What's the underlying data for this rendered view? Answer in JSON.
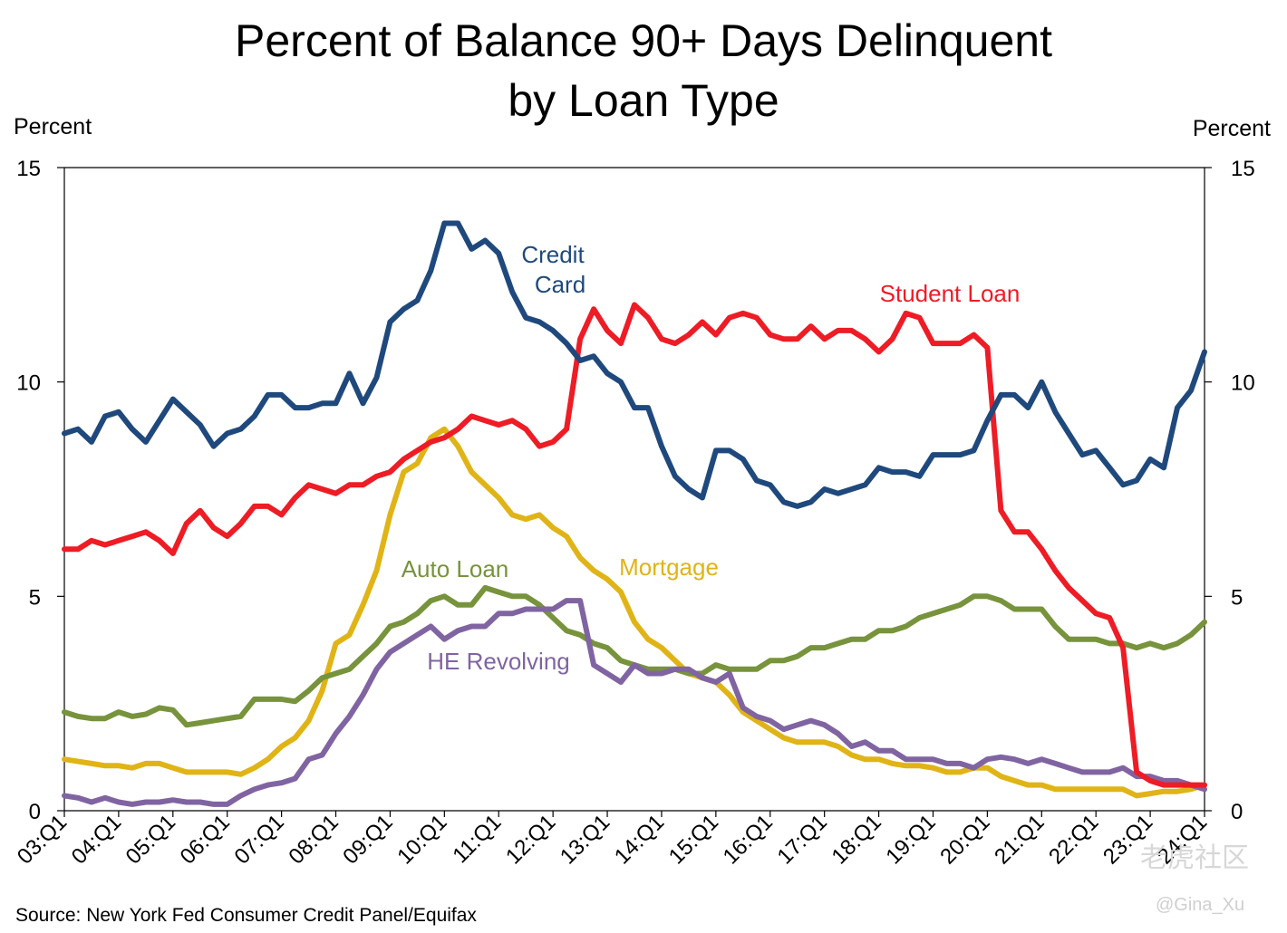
{
  "chart_data": {
    "type": "line",
    "title_line1": "Percent of Balance 90+ Days Delinquent",
    "title_line2": "by Loan Type",
    "ylabel_left": "Percent",
    "ylabel_right": "Percent",
    "ylim": [
      0,
      15
    ],
    "yticks": [
      0,
      5,
      10,
      15
    ],
    "x_start": "2003-Q1",
    "x_end": "2024-Q1",
    "x_ticks": [
      "03:Q1",
      "04:Q1",
      "05:Q1",
      "06:Q1",
      "07:Q1",
      "08:Q1",
      "09:Q1",
      "10:Q1",
      "11:Q1",
      "12:Q1",
      "13:Q1",
      "14:Q1",
      "15:Q1",
      "16:Q1",
      "17:Q1",
      "18:Q1",
      "19:Q1",
      "20:Q1",
      "21:Q1",
      "22:Q1",
      "23:Q1",
      "24:Q1"
    ],
    "source": "Source: New York Fed Consumer Credit Panel/Equifax",
    "series": [
      {
        "name": "Credit Card",
        "label_lines": [
          "Credit",
          "Card"
        ],
        "color": "#1f497d",
        "values": [
          8.8,
          8.9,
          8.6,
          9.2,
          9.3,
          8.9,
          8.6,
          9.1,
          9.6,
          9.3,
          9.0,
          8.5,
          8.8,
          8.9,
          9.2,
          9.7,
          9.7,
          9.4,
          9.4,
          9.5,
          9.5,
          10.2,
          9.5,
          10.1,
          11.4,
          11.7,
          11.9,
          12.6,
          13.7,
          13.7,
          13.1,
          13.3,
          13.0,
          12.1,
          11.5,
          11.4,
          11.2,
          10.9,
          10.5,
          10.6,
          10.2,
          10.0,
          9.4,
          9.4,
          8.5,
          7.8,
          7.5,
          7.3,
          8.4,
          8.4,
          8.2,
          7.7,
          7.6,
          7.2,
          7.1,
          7.2,
          7.5,
          7.4,
          7.5,
          7.6,
          8.0,
          7.9,
          7.9,
          7.8,
          8.3,
          8.3,
          8.3,
          8.4,
          9.1,
          9.7,
          9.7,
          9.4,
          10.0,
          9.3,
          8.8,
          8.3,
          8.4,
          8.0,
          7.6,
          7.7,
          8.2,
          8.0,
          9.4,
          9.8,
          10.7
        ]
      },
      {
        "name": "Student Loan",
        "label_lines": [
          "Student Loan"
        ],
        "color": "#ee1c25",
        "values": [
          6.1,
          6.1,
          6.3,
          6.2,
          6.3,
          6.4,
          6.5,
          6.3,
          6.0,
          6.7,
          7.0,
          6.6,
          6.4,
          6.7,
          7.1,
          7.1,
          6.9,
          7.3,
          7.6,
          7.5,
          7.4,
          7.6,
          7.6,
          7.8,
          7.9,
          8.2,
          8.4,
          8.6,
          8.7,
          8.9,
          9.2,
          9.1,
          9.0,
          9.1,
          8.9,
          8.5,
          8.6,
          8.9,
          11.0,
          11.7,
          11.2,
          10.9,
          11.8,
          11.5,
          11.0,
          10.9,
          11.1,
          11.4,
          11.1,
          11.5,
          11.6,
          11.5,
          11.1,
          11.0,
          11.0,
          11.3,
          11.0,
          11.2,
          11.2,
          11.0,
          10.7,
          11.0,
          11.6,
          11.5,
          10.9,
          10.9,
          10.9,
          11.1,
          10.8,
          7.0,
          6.5,
          6.5,
          6.1,
          5.6,
          5.2,
          4.9,
          4.6,
          4.5,
          3.8,
          0.9,
          0.7,
          0.6,
          0.6,
          0.6,
          0.6
        ]
      },
      {
        "name": "Mortgage",
        "label_lines": [
          "Mortgage"
        ],
        "color": "#e0b416",
        "values": [
          1.2,
          1.15,
          1.1,
          1.05,
          1.05,
          1.0,
          1.1,
          1.1,
          1.0,
          0.9,
          0.9,
          0.9,
          0.9,
          0.85,
          1.0,
          1.2,
          1.5,
          1.7,
          2.1,
          2.8,
          3.9,
          4.1,
          4.8,
          5.6,
          6.9,
          7.9,
          8.1,
          8.7,
          8.9,
          8.5,
          7.9,
          7.6,
          7.3,
          6.9,
          6.8,
          6.9,
          6.6,
          6.4,
          5.9,
          5.6,
          5.4,
          5.1,
          4.4,
          4.0,
          3.8,
          3.5,
          3.2,
          3.1,
          3.0,
          2.7,
          2.3,
          2.1,
          1.9,
          1.7,
          1.6,
          1.6,
          1.6,
          1.5,
          1.3,
          1.2,
          1.2,
          1.1,
          1.05,
          1.05,
          1.0,
          0.9,
          0.9,
          1.0,
          1.0,
          0.8,
          0.7,
          0.6,
          0.6,
          0.5,
          0.5,
          0.5,
          0.5,
          0.5,
          0.5,
          0.35,
          0.4,
          0.45,
          0.45,
          0.5,
          0.6
        ]
      },
      {
        "name": "Auto Loan",
        "label_lines": [
          "Auto Loan"
        ],
        "color": "#77933c",
        "values": [
          2.3,
          2.2,
          2.15,
          2.15,
          2.3,
          2.2,
          2.25,
          2.4,
          2.35,
          2.0,
          2.05,
          2.1,
          2.15,
          2.2,
          2.6,
          2.6,
          2.6,
          2.55,
          2.8,
          3.1,
          3.2,
          3.3,
          3.6,
          3.9,
          4.3,
          4.4,
          4.6,
          4.9,
          5.0,
          4.8,
          4.8,
          5.2,
          5.1,
          5.0,
          5.0,
          4.8,
          4.5,
          4.2,
          4.1,
          3.9,
          3.8,
          3.5,
          3.4,
          3.3,
          3.3,
          3.3,
          3.2,
          3.2,
          3.4,
          3.3,
          3.3,
          3.3,
          3.5,
          3.5,
          3.6,
          3.8,
          3.8,
          3.9,
          4.0,
          4.0,
          4.2,
          4.2,
          4.3,
          4.5,
          4.6,
          4.7,
          4.8,
          5.0,
          5.0,
          4.9,
          4.7,
          4.7,
          4.7,
          4.3,
          4.0,
          4.0,
          4.0,
          3.9,
          3.9,
          3.8,
          3.9,
          3.8,
          3.9,
          4.1,
          4.4
        ]
      },
      {
        "name": "HE Revolving",
        "label_lines": [
          "HE Revolving"
        ],
        "color": "#8064a2",
        "values": [
          0.35,
          0.3,
          0.2,
          0.3,
          0.2,
          0.15,
          0.2,
          0.2,
          0.25,
          0.2,
          0.2,
          0.15,
          0.15,
          0.35,
          0.5,
          0.6,
          0.65,
          0.75,
          1.2,
          1.3,
          1.8,
          2.2,
          2.7,
          3.3,
          3.7,
          3.9,
          4.1,
          4.3,
          4.0,
          4.2,
          4.3,
          4.3,
          4.6,
          4.6,
          4.7,
          4.7,
          4.7,
          4.9,
          4.9,
          3.4,
          3.2,
          3.0,
          3.4,
          3.2,
          3.2,
          3.3,
          3.3,
          3.1,
          3.0,
          3.2,
          2.4,
          2.2,
          2.1,
          1.9,
          2.0,
          2.1,
          2.0,
          1.8,
          1.5,
          1.6,
          1.4,
          1.4,
          1.2,
          1.2,
          1.2,
          1.1,
          1.1,
          1.0,
          1.2,
          1.25,
          1.2,
          1.1,
          1.2,
          1.1,
          1.0,
          0.9,
          0.9,
          0.9,
          1.0,
          0.8,
          0.8,
          0.7,
          0.7,
          0.6,
          0.5
        ]
      }
    ],
    "watermark": "老虎社区",
    "watermark_user": "@Gina_Xu"
  }
}
